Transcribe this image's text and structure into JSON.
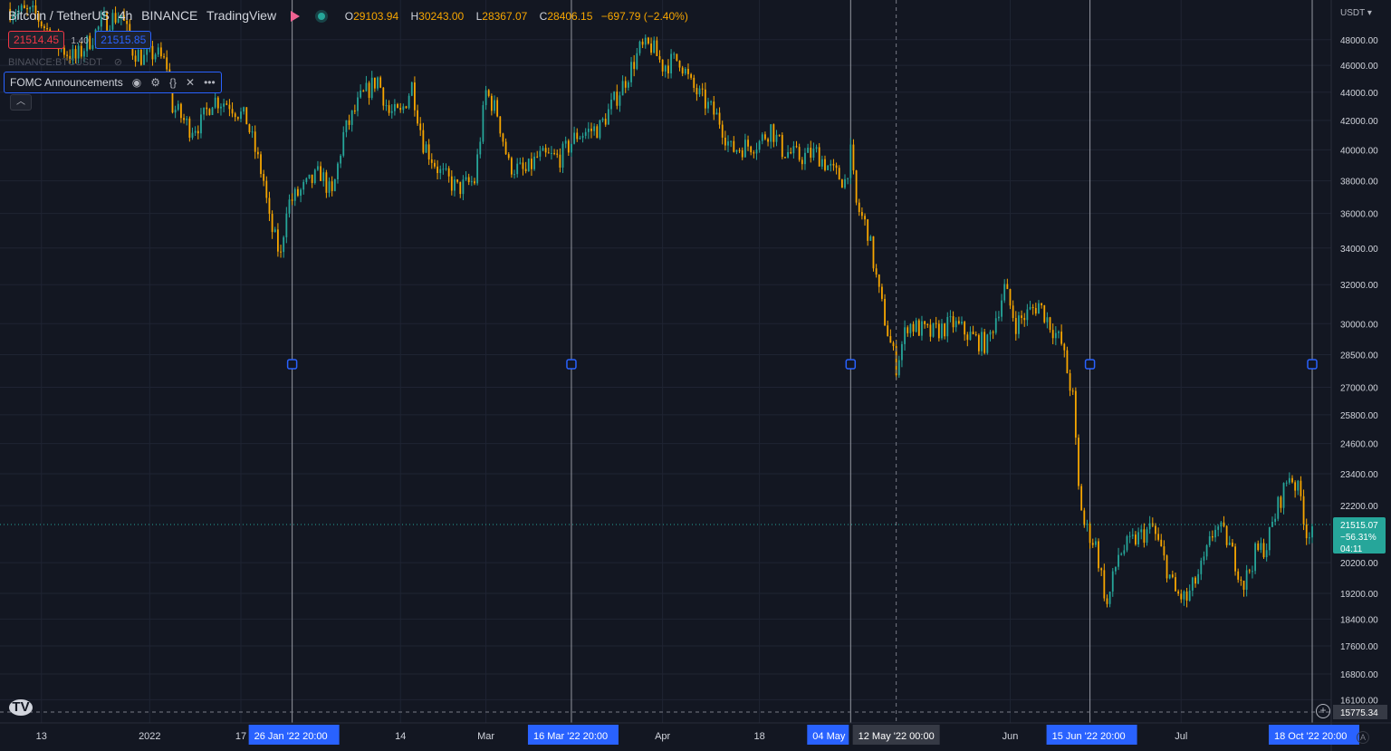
{
  "header": {
    "symbol": "Bitcoin / TetherUS",
    "interval": "4h",
    "exchange": "BINANCE",
    "source": "TradingView",
    "ohlc": {
      "o_label": "O",
      "o": "29103.94",
      "h_label": "H",
      "h": "30243.00",
      "l_label": "L",
      "l": "28367.07",
      "c_label": "C",
      "c": "28406.15",
      "change": "−697.79 (−2.40%)"
    }
  },
  "bid_ask": {
    "bid": "21514.45",
    "spread": "1.40",
    "ask": "21515.85"
  },
  "secondary_symbol": "BINANCE:BTCUSDT",
  "indicator": {
    "name": "FOMC Announcements"
  },
  "axis_currency": "USDT",
  "last_price": {
    "price": "21515.07",
    "change": "−56.31%",
    "countdown": "04:11",
    "value": 21515.07
  },
  "bottom_price": {
    "label": "15775.34",
    "value": 15775.34
  },
  "colors": {
    "up": "#26a69a",
    "down": "#f7a600",
    "grid": "#1f2433",
    "event_line": "#9598a1",
    "label_bg": "#2962ff",
    "accent": "#2962ff"
  },
  "chart_data": {
    "type": "candlestick",
    "title": "Bitcoin / TetherUS",
    "y_scale": "log",
    "ylim": [
      15775.34,
      49000
    ],
    "y_ticks": [
      48000,
      46000,
      44000,
      42000,
      40000,
      38000,
      36000,
      34000,
      32000,
      30000,
      28500,
      27000,
      25800,
      24600,
      23400,
      22200,
      20200,
      19200,
      18400,
      17600,
      16800,
      16100
    ],
    "y_tick_labels": [
      "48000.00",
      "46000.00",
      "44000.00",
      "42000.00",
      "40000.00",
      "38000.00",
      "36000.00",
      "34000.00",
      "32000.00",
      "30000.00",
      "28500.00",
      "27000.00",
      "25800.00",
      "24600.00",
      "23400.00",
      "22200.00",
      "20200.00",
      "19200.00",
      "18400.00",
      "17600.00",
      "16800.00",
      "16100.00"
    ],
    "x_range": [
      "2021-12-07",
      "2022-07-24"
    ],
    "x_tick_labels": [
      {
        "label": "13",
        "date": "2021-12-13"
      },
      {
        "label": "2022",
        "date": "2022-01-01"
      },
      {
        "label": "17",
        "date": "2022-01-17"
      },
      {
        "label": "14",
        "date": "2022-02-14"
      },
      {
        "label": "Mar",
        "date": "2022-03-01"
      },
      {
        "label": "Apr",
        "date": "2022-04-01"
      },
      {
        "label": "18",
        "date": "2022-04-18"
      },
      {
        "label": "Jun",
        "date": "2022-06-01"
      },
      {
        "label": "Jul",
        "date": "2022-07-01"
      }
    ],
    "events": [
      {
        "label": "26 Jan '22",
        "time": "20:00",
        "date": "2022-01-26"
      },
      {
        "label": "16 Mar '22",
        "time": "20:00",
        "date": "2022-03-16"
      },
      {
        "label": "04 May",
        "time": "",
        "date": "2022-05-04"
      },
      {
        "label": "15 Jun '22",
        "time": "20:00",
        "date": "2022-06-15"
      },
      {
        "label": "18 Oct '22",
        "time": "20:00",
        "date": "2022-07-24"
      }
    ],
    "crosshair": {
      "label": "12 May '22",
      "time": "00:00",
      "date": "2022-05-12"
    },
    "price_path": [
      {
        "date": "2021-12-07",
        "price": 50500
      },
      {
        "date": "2021-12-12",
        "price": 50000
      },
      {
        "date": "2021-12-16",
        "price": 47500
      },
      {
        "date": "2021-12-19",
        "price": 46500
      },
      {
        "date": "2021-12-24",
        "price": 49500
      },
      {
        "date": "2021-12-27",
        "price": 50000
      },
      {
        "date": "2021-12-29",
        "price": 47200
      },
      {
        "date": "2021-12-31",
        "price": 46500
      },
      {
        "date": "2022-01-02",
        "price": 47000
      },
      {
        "date": "2022-01-04",
        "price": 46000
      },
      {
        "date": "2022-01-05",
        "price": 43000
      },
      {
        "date": "2022-01-08",
        "price": 41500
      },
      {
        "date": "2022-01-10",
        "price": 41800
      },
      {
        "date": "2022-01-12",
        "price": 43500
      },
      {
        "date": "2022-01-15",
        "price": 43200
      },
      {
        "date": "2022-01-18",
        "price": 42000
      },
      {
        "date": "2022-01-21",
        "price": 38000
      },
      {
        "date": "2022-01-22",
        "price": 35500
      },
      {
        "date": "2022-01-24",
        "price": 33500
      },
      {
        "date": "2022-01-25",
        "price": 36500
      },
      {
        "date": "2022-01-28",
        "price": 37500
      },
      {
        "date": "2022-01-31",
        "price": 38500
      },
      {
        "date": "2022-02-02",
        "price": 37000
      },
      {
        "date": "2022-02-04",
        "price": 41000
      },
      {
        "date": "2022-02-07",
        "price": 43500
      },
      {
        "date": "2022-02-10",
        "price": 45000
      },
      {
        "date": "2022-02-12",
        "price": 42500
      },
      {
        "date": "2022-02-14",
        "price": 42400
      },
      {
        "date": "2022-02-16",
        "price": 44500
      },
      {
        "date": "2022-02-18",
        "price": 40500
      },
      {
        "date": "2022-02-21",
        "price": 38500
      },
      {
        "date": "2022-02-24",
        "price": 37500
      },
      {
        "date": "2022-02-27",
        "price": 38000
      },
      {
        "date": "2022-03-01",
        "price": 44000
      },
      {
        "date": "2022-03-03",
        "price": 42500
      },
      {
        "date": "2022-03-05",
        "price": 39000
      },
      {
        "date": "2022-03-08",
        "price": 38500
      },
      {
        "date": "2022-03-10",
        "price": 39500
      },
      {
        "date": "2022-03-14",
        "price": 39500
      },
      {
        "date": "2022-03-17",
        "price": 41000
      },
      {
        "date": "2022-03-21",
        "price": 41500
      },
      {
        "date": "2022-03-25",
        "price": 44500
      },
      {
        "date": "2022-03-28",
        "price": 47200
      },
      {
        "date": "2022-03-30",
        "price": 47500
      },
      {
        "date": "2022-04-01",
        "price": 46000
      },
      {
        "date": "2022-04-04",
        "price": 46500
      },
      {
        "date": "2022-04-06",
        "price": 44500
      },
      {
        "date": "2022-04-11",
        "price": 42000
      },
      {
        "date": "2022-04-13",
        "price": 40000
      },
      {
        "date": "2022-04-18",
        "price": 40500
      },
      {
        "date": "2022-04-20",
        "price": 41500
      },
      {
        "date": "2022-04-22",
        "price": 40000
      },
      {
        "date": "2022-04-25",
        "price": 39500
      },
      {
        "date": "2022-04-28",
        "price": 39800
      },
      {
        "date": "2022-05-01",
        "price": 38500
      },
      {
        "date": "2022-05-03",
        "price": 38000
      },
      {
        "date": "2022-05-04",
        "price": 39700
      },
      {
        "date": "2022-05-05",
        "price": 36500
      },
      {
        "date": "2022-05-07",
        "price": 35000
      },
      {
        "date": "2022-05-09",
        "price": 31500
      },
      {
        "date": "2022-05-11",
        "price": 29000
      },
      {
        "date": "2022-05-12",
        "price": 28000
      },
      {
        "date": "2022-05-14",
        "price": 30000
      },
      {
        "date": "2022-05-18",
        "price": 29500
      },
      {
        "date": "2022-05-22",
        "price": 30000
      },
      {
        "date": "2022-05-26",
        "price": 29200
      },
      {
        "date": "2022-05-28",
        "price": 29000
      },
      {
        "date": "2022-05-31",
        "price": 31800
      },
      {
        "date": "2022-06-02",
        "price": 30000
      },
      {
        "date": "2022-06-06",
        "price": 31000
      },
      {
        "date": "2022-06-08",
        "price": 30000
      },
      {
        "date": "2022-06-10",
        "price": 29000
      },
      {
        "date": "2022-06-12",
        "price": 26500
      },
      {
        "date": "2022-06-13",
        "price": 22800
      },
      {
        "date": "2022-06-14",
        "price": 21500
      },
      {
        "date": "2022-06-16",
        "price": 20800
      },
      {
        "date": "2022-06-18",
        "price": 18800
      },
      {
        "date": "2022-06-20",
        "price": 20500
      },
      {
        "date": "2022-06-23",
        "price": 21000
      },
      {
        "date": "2022-06-26",
        "price": 21400
      },
      {
        "date": "2022-06-28",
        "price": 20300
      },
      {
        "date": "2022-06-30",
        "price": 19200
      },
      {
        "date": "2022-07-02",
        "price": 19000
      },
      {
        "date": "2022-07-05",
        "price": 20200
      },
      {
        "date": "2022-07-07",
        "price": 21500
      },
      {
        "date": "2022-07-09",
        "price": 21000
      },
      {
        "date": "2022-07-12",
        "price": 19500
      },
      {
        "date": "2022-07-14",
        "price": 20500
      },
      {
        "date": "2022-07-16",
        "price": 20800
      },
      {
        "date": "2022-07-18",
        "price": 22200
      },
      {
        "date": "2022-07-20",
        "price": 23400
      },
      {
        "date": "2022-07-21",
        "price": 23000
      },
      {
        "date": "2022-07-22",
        "price": 22500
      },
      {
        "date": "2022-07-23",
        "price": 21200
      },
      {
        "date": "2022-07-24",
        "price": 21515
      }
    ]
  }
}
